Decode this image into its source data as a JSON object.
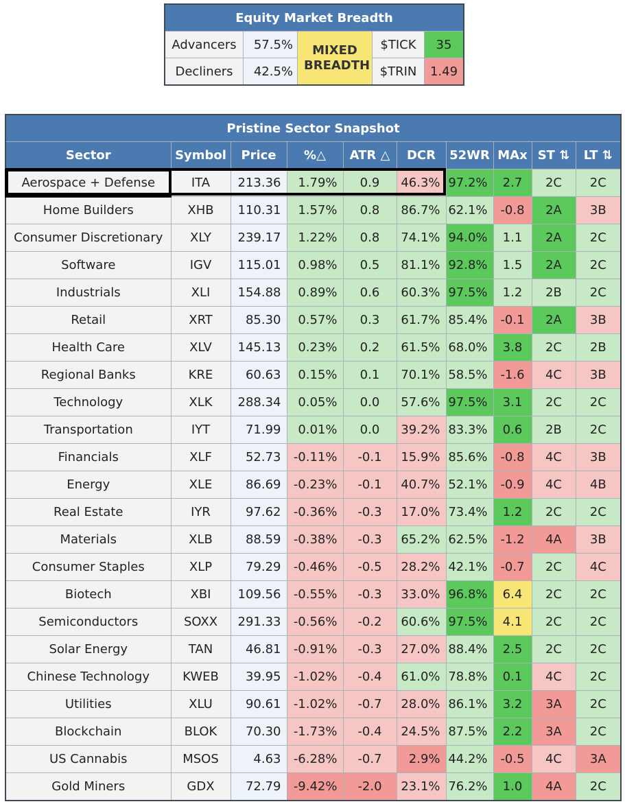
{
  "breadth": {
    "title": "Equity Market Breadth",
    "advancers_label": "Advancers",
    "advancers_value": "57.5%",
    "decliners_label": "Decliners",
    "decliners_value": "42.5%",
    "status": "MIXED BREADTH",
    "tick_label": "$TICK",
    "tick_value": "35",
    "trin_label": "$TRIN",
    "trin_value": "1.49"
  },
  "sector": {
    "title": "Pristine Sector Snapshot",
    "columns": [
      "Sector",
      "Symbol",
      "Price",
      "%△",
      "ATR △",
      "DCR",
      "52WR",
      "MAx",
      "ST ⇅",
      "LT ⇅"
    ],
    "rows": [
      {
        "sector": "Aerospace + Defense",
        "symbol": "ITA",
        "price": "213.36",
        "pct": "1.79%",
        "atr": "0.9",
        "dcr": "46.3%",
        "wr": "97.2%",
        "max": "2.7",
        "st": "2C",
        "lt": "2C"
      },
      {
        "sector": "Home Builders",
        "symbol": "XHB",
        "price": "110.31",
        "pct": "1.57%",
        "atr": "0.8",
        "dcr": "86.7%",
        "wr": "62.1%",
        "max": "-0.8",
        "st": "2A",
        "lt": "3B"
      },
      {
        "sector": "Consumer Discretionary",
        "symbol": "XLY",
        "price": "239.17",
        "pct": "1.22%",
        "atr": "0.8",
        "dcr": "74.1%",
        "wr": "94.0%",
        "max": "1.1",
        "st": "2A",
        "lt": "2C"
      },
      {
        "sector": "Software",
        "symbol": "IGV",
        "price": "115.01",
        "pct": "0.98%",
        "atr": "0.5",
        "dcr": "81.1%",
        "wr": "92.8%",
        "max": "1.5",
        "st": "2A",
        "lt": "2C"
      },
      {
        "sector": "Industrials",
        "symbol": "XLI",
        "price": "154.88",
        "pct": "0.89%",
        "atr": "0.6",
        "dcr": "60.3%",
        "wr": "97.5%",
        "max": "1.2",
        "st": "2B",
        "lt": "2C"
      },
      {
        "sector": "Retail",
        "symbol": "XRT",
        "price": "85.30",
        "pct": "0.57%",
        "atr": "0.3",
        "dcr": "61.7%",
        "wr": "85.4%",
        "max": "-0.1",
        "st": "2A",
        "lt": "3B"
      },
      {
        "sector": "Health Care",
        "symbol": "XLV",
        "price": "145.13",
        "pct": "0.23%",
        "atr": "0.2",
        "dcr": "61.5%",
        "wr": "68.0%",
        "max": "3.8",
        "st": "2C",
        "lt": "2B"
      },
      {
        "sector": "Regional Banks",
        "symbol": "KRE",
        "price": "60.63",
        "pct": "0.15%",
        "atr": "0.1",
        "dcr": "70.1%",
        "wr": "58.5%",
        "max": "-1.6",
        "st": "4C",
        "lt": "3B"
      },
      {
        "sector": "Technology",
        "symbol": "XLK",
        "price": "288.34",
        "pct": "0.05%",
        "atr": "0.0",
        "dcr": "57.6%",
        "wr": "97.5%",
        "max": "3.1",
        "st": "2C",
        "lt": "2C"
      },
      {
        "sector": "Transportation",
        "symbol": "IYT",
        "price": "71.99",
        "pct": "0.01%",
        "atr": "0.0",
        "dcr": "39.2%",
        "wr": "83.3%",
        "max": "0.6",
        "st": "2B",
        "lt": "2C"
      },
      {
        "sector": "Financials",
        "symbol": "XLF",
        "price": "52.73",
        "pct": "-0.11%",
        "atr": "-0.1",
        "dcr": "15.9%",
        "wr": "85.6%",
        "max": "-0.8",
        "st": "4C",
        "lt": "3B"
      },
      {
        "sector": "Energy",
        "symbol": "XLE",
        "price": "86.69",
        "pct": "-0.23%",
        "atr": "-0.1",
        "dcr": "40.7%",
        "wr": "52.1%",
        "max": "-0.9",
        "st": "4C",
        "lt": "4B"
      },
      {
        "sector": "Real Estate",
        "symbol": "IYR",
        "price": "97.62",
        "pct": "-0.36%",
        "atr": "-0.3",
        "dcr": "17.0%",
        "wr": "73.4%",
        "max": "1.2",
        "st": "2C",
        "lt": "2C"
      },
      {
        "sector": "Materials",
        "symbol": "XLB",
        "price": "88.59",
        "pct": "-0.38%",
        "atr": "-0.3",
        "dcr": "65.2%",
        "wr": "62.5%",
        "max": "-1.2",
        "st": "4A",
        "lt": "3B"
      },
      {
        "sector": "Consumer Staples",
        "symbol": "XLP",
        "price": "79.29",
        "pct": "-0.46%",
        "atr": "-0.5",
        "dcr": "28.2%",
        "wr": "42.1%",
        "max": "-0.7",
        "st": "2C",
        "lt": "4C"
      },
      {
        "sector": "Biotech",
        "symbol": "XBI",
        "price": "109.56",
        "pct": "-0.55%",
        "atr": "-0.3",
        "dcr": "33.0%",
        "wr": "96.8%",
        "max": "6.4",
        "st": "2C",
        "lt": "2C"
      },
      {
        "sector": "Semiconductors",
        "symbol": "SOXX",
        "price": "291.33",
        "pct": "-0.56%",
        "atr": "-0.2",
        "dcr": "60.6%",
        "wr": "97.5%",
        "max": "4.1",
        "st": "2C",
        "lt": "2C"
      },
      {
        "sector": "Solar Energy",
        "symbol": "TAN",
        "price": "46.81",
        "pct": "-0.91%",
        "atr": "-0.3",
        "dcr": "27.0%",
        "wr": "88.4%",
        "max": "2.5",
        "st": "2C",
        "lt": "2C"
      },
      {
        "sector": "Chinese Technology",
        "symbol": "KWEB",
        "price": "39.95",
        "pct": "-1.02%",
        "atr": "-0.4",
        "dcr": "61.0%",
        "wr": "78.8%",
        "max": "0.1",
        "st": "4C",
        "lt": "2C"
      },
      {
        "sector": "Utilities",
        "symbol": "XLU",
        "price": "90.61",
        "pct": "-1.02%",
        "atr": "-0.7",
        "dcr": "28.0%",
        "wr": "86.1%",
        "max": "3.2",
        "st": "3A",
        "lt": "2C"
      },
      {
        "sector": "Blockchain",
        "symbol": "BLOK",
        "price": "70.30",
        "pct": "-1.73%",
        "atr": "-0.4",
        "dcr": "24.5%",
        "wr": "87.5%",
        "max": "2.2",
        "st": "3A",
        "lt": "2C"
      },
      {
        "sector": "US Cannabis",
        "symbol": "MSOS",
        "price": "4.63",
        "pct": "-6.28%",
        "atr": "-0.7",
        "dcr": "2.9%",
        "wr": "44.2%",
        "max": "-0.5",
        "st": "4C",
        "lt": "3A"
      },
      {
        "sector": "Gold Miners",
        "symbol": "GDX",
        "price": "72.79",
        "pct": "-9.42%",
        "atr": "-2.0",
        "dcr": "23.1%",
        "wr": "76.2%",
        "max": "1.0",
        "st": "4A",
        "lt": "2C"
      }
    ]
  },
  "colors": {
    "header_blue": "#4a7ab0",
    "light_green": "#c7e9c5",
    "dark_green": "#5cc95c",
    "light_red": "#f6c6c5",
    "dark_red": "#f19a98",
    "yellow": "#f7e676"
  }
}
